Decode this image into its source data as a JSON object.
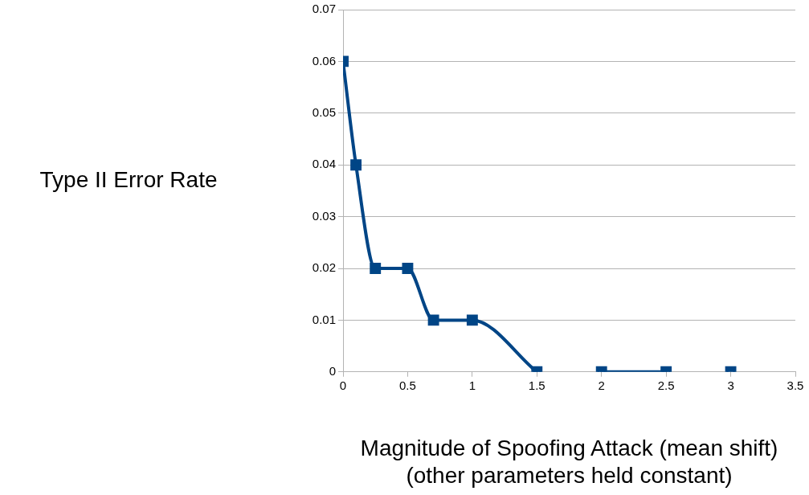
{
  "chart_data": {
    "type": "line",
    "ylabel": "Type II Error Rate",
    "xlabel": "Magnitude of Spoofing Attack (mean shift)\n(other parameters held constant)",
    "series": [
      {
        "color": "#004586",
        "x": [
          0,
          0.1,
          0.25,
          0.5,
          0.7,
          1,
          1.5
        ],
        "values": [
          0.06,
          0.04,
          0.02,
          0.02,
          0.01,
          0.01,
          0
        ]
      },
      {
        "color": "#004586",
        "x": [
          2,
          2.5
        ],
        "values": [
          0,
          0
        ]
      },
      {
        "color": "#004586",
        "x": [
          3
        ],
        "values": [
          0
        ]
      }
    ],
    "xlim": [
      0,
      3.5
    ],
    "xticks": [
      0,
      0.5,
      1,
      1.5,
      2,
      2.5,
      3,
      3.5
    ],
    "ylim": [
      0,
      0.07
    ],
    "yticks": [
      0,
      0.01,
      0.02,
      0.03,
      0.04,
      0.05,
      0.06,
      0.07
    ],
    "grid": "y",
    "legend": false,
    "marker": "square",
    "line_style": "solid"
  }
}
